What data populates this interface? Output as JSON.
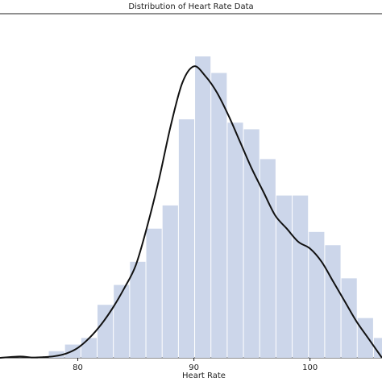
{
  "chart_data": {
    "type": "bar",
    "title": "Distribution of Heart Rate Data",
    "xlabel": "Heart Rate",
    "ylabel": "",
    "xlim": [
      73.3,
      106.2
    ],
    "xticks": [
      80,
      90,
      100
    ],
    "ylim": [
      0,
      1
    ],
    "bin_width": 1.4,
    "histogram": {
      "bin_starts": [
        77.5,
        78.9,
        80.3,
        81.7,
        83.1,
        84.5,
        85.9,
        87.3,
        88.7,
        90.1,
        91.5,
        92.9,
        94.3,
        95.7,
        97.1,
        98.5,
        99.9,
        101.3,
        102.7,
        104.1,
        105.5
      ],
      "values": [
        0.02,
        0.04,
        0.06,
        0.16,
        0.22,
        0.29,
        0.39,
        0.46,
        0.72,
        0.91,
        0.86,
        0.71,
        0.69,
        0.6,
        0.49,
        0.49,
        0.38,
        0.34,
        0.24,
        0.12,
        0.06
      ]
    },
    "kde": {
      "x": [
        73.3,
        75,
        76,
        77,
        78,
        79,
        80,
        81,
        82,
        83,
        84,
        85,
        86,
        87,
        88,
        89,
        90,
        91,
        92,
        93,
        94,
        95,
        96,
        97,
        98,
        99,
        100,
        101,
        102,
        103,
        104,
        105,
        106.2
      ],
      "y": [
        0.0,
        0.004,
        0.001,
        0.002,
        0.005,
        0.013,
        0.03,
        0.06,
        0.1,
        0.15,
        0.21,
        0.28,
        0.4,
        0.54,
        0.7,
        0.83,
        0.88,
        0.85,
        0.8,
        0.73,
        0.65,
        0.57,
        0.5,
        0.43,
        0.39,
        0.35,
        0.33,
        0.29,
        0.23,
        0.17,
        0.11,
        0.06,
        0.0
      ]
    },
    "grid": false,
    "colors": {
      "bars": "#ccd6ea",
      "kde_line": "#111111"
    }
  }
}
